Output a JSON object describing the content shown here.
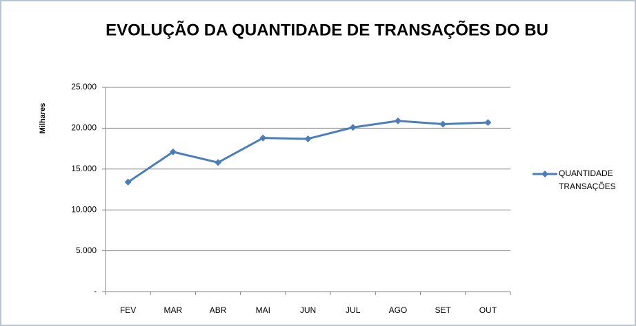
{
  "chart_data": {
    "type": "line",
    "title": "EVOLUÇÃO DA QUANTIDADE DE TRANSAÇÕES DO BU",
    "y_label": "Milhares",
    "categories": [
      "FEV",
      "MAR",
      "ABR",
      "MAI",
      "JUN",
      "JUL",
      "AGO",
      "SET",
      "OUT"
    ],
    "series": [
      {
        "name": "QUANTIDADE TRANSAÇÕES",
        "color": "#4a7ebb",
        "values": [
          13400,
          17100,
          15800,
          18800,
          18700,
          20100,
          20900,
          20500,
          20700
        ]
      }
    ],
    "ylim": [
      0,
      25000
    ],
    "yticks": [
      {
        "value": 0,
        "label": "-"
      },
      {
        "value": 5000,
        "label": "5.000"
      },
      {
        "value": 10000,
        "label": "10.000"
      },
      {
        "value": 15000,
        "label": "15.000"
      },
      {
        "value": 20000,
        "label": "20.000"
      },
      {
        "value": 25000,
        "label": "25.000"
      }
    ],
    "grid": true,
    "legend": "right"
  }
}
